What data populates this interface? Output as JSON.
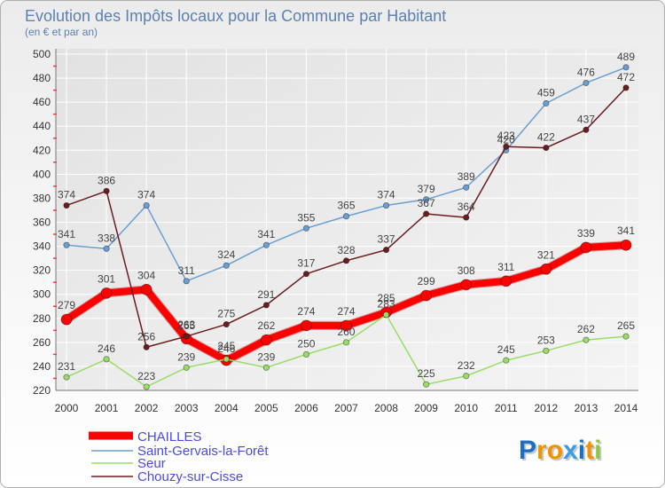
{
  "chart_data": {
    "type": "line",
    "title": "Evolution des Impôts locaux pour la Commune par Habitant",
    "subtitle": "(en € et par an)",
    "xlabel": "",
    "ylabel": "",
    "x": [
      2000,
      2001,
      2002,
      2003,
      2004,
      2005,
      2006,
      2007,
      2008,
      2009,
      2010,
      2011,
      2012,
      2013,
      2014
    ],
    "ylim": [
      220,
      500
    ],
    "yticks": [
      220,
      240,
      260,
      280,
      300,
      320,
      340,
      360,
      380,
      400,
      420,
      440,
      460,
      480,
      500
    ],
    "grid": true,
    "legend": "bottom-left",
    "series": [
      {
        "name": "CHAILLES",
        "color": "#ff0000",
        "values": [
          279,
          301,
          304,
          263,
          245,
          262,
          274,
          274,
          285,
          299,
          308,
          311,
          321,
          339,
          341
        ]
      },
      {
        "name": "Saint-Gervais-la-Forêt",
        "color": "#6a9fd4",
        "values": [
          341,
          338,
          374,
          311,
          324,
          341,
          355,
          365,
          374,
          379,
          389,
          420,
          459,
          476,
          489
        ]
      },
      {
        "name": "Seur",
        "color": "#99dd66",
        "values": [
          231,
          246,
          223,
          239,
          246,
          239,
          250,
          260,
          283,
          225,
          232,
          245,
          253,
          262,
          265
        ]
      },
      {
        "name": "Chouzy-sur-Cisse",
        "color": "#6b1c1c",
        "values": [
          374,
          386,
          256,
          265,
          275,
          291,
          317,
          328,
          337,
          367,
          364,
          423,
          422,
          437,
          472
        ]
      }
    ]
  },
  "logo": {
    "text": "Proxiti",
    "letter_colors": [
      "#1d6fc4",
      "#f39200",
      "#f39200",
      "#3c9de0",
      "#1d6fc4",
      "#f39200",
      "#8cc63f"
    ]
  }
}
